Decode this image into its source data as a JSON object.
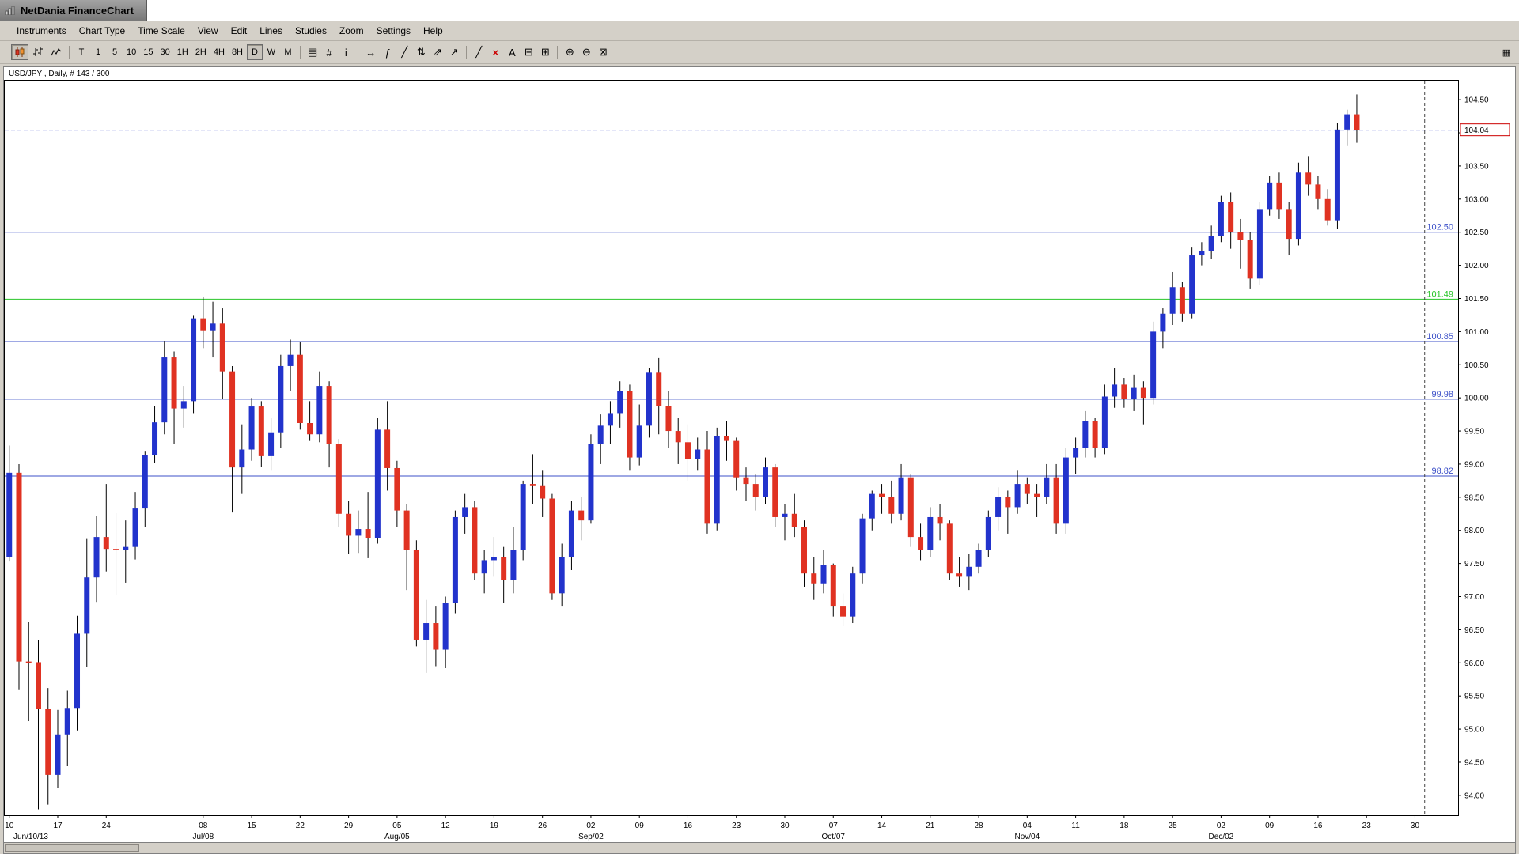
{
  "window": {
    "title": "NetDania FinanceChart"
  },
  "menu": {
    "items": [
      "Instruments",
      "Chart Type",
      "Time Scale",
      "View",
      "Edit",
      "Lines",
      "Studies",
      "Zoom",
      "Settings",
      "Help"
    ]
  },
  "toolbar": {
    "chart_types": [
      "candlestick",
      "ohlc-bars",
      "line"
    ],
    "selected_chart_type": "candlestick",
    "timeframes": [
      "T",
      "1",
      "5",
      "10",
      "15",
      "30",
      "1H",
      "2H",
      "4H",
      "8H",
      "D",
      "W",
      "M"
    ],
    "selected_timeframe": "D",
    "tools": [
      {
        "name": "pane-layout",
        "glyph": "▤"
      },
      {
        "name": "grid-toggle",
        "glyph": "#"
      },
      {
        "name": "info",
        "glyph": "i"
      },
      {
        "name": "separator"
      },
      {
        "name": "scroll-chart",
        "glyph": "↔"
      },
      {
        "name": "indicator",
        "glyph": "ƒ"
      },
      {
        "name": "trend-line",
        "glyph": "╱"
      },
      {
        "name": "vertical-line",
        "glyph": "⇅"
      },
      {
        "name": "ray-line",
        "glyph": "⇗"
      },
      {
        "name": "arrow-marker",
        "glyph": "↗"
      },
      {
        "name": "separator"
      },
      {
        "name": "free-draw",
        "glyph": "╱"
      },
      {
        "name": "delete-drawings",
        "glyph": "×",
        "color": "#cc0000"
      },
      {
        "name": "text-label",
        "glyph": "A"
      },
      {
        "name": "print",
        "glyph": "⊟"
      },
      {
        "name": "print-preview",
        "glyph": "⊞"
      },
      {
        "name": "separator"
      },
      {
        "name": "zoom-in",
        "glyph": "⊕"
      },
      {
        "name": "zoom-out",
        "glyph": "⊖"
      },
      {
        "name": "zoom-reset",
        "glyph": "⊠"
      }
    ],
    "right_icon_glyph": "▦"
  },
  "chart_data": {
    "type": "candlestick",
    "symbol": "USD/JPY",
    "timeframe": "Daily",
    "label": "USD/JPY , Daily, # 143 / 300",
    "bar_count": "143 / 300",
    "price_top": 104.8,
    "price_bottom": 93.7,
    "y_ticks": {
      "min": 94.0,
      "max": 104.5,
      "step": 0.5
    },
    "slots": 150,
    "cursor_slot": 146,
    "current_price": {
      "value": "104.04",
      "price": 104.04
    },
    "colors": {
      "up": "#2233cc",
      "down": "#e03222",
      "wick": "#000000",
      "cursor": "#444444"
    },
    "h_lines": [
      {
        "price": 104.04,
        "label": "104.04",
        "color": "#2a35c8",
        "style": "dashed",
        "axis_box": true
      },
      {
        "price": 102.5,
        "label": "102.50",
        "color": "#3c50c8",
        "style": "solid",
        "axis_box": false
      },
      {
        "price": 101.49,
        "label": "101.49",
        "color": "#27c427",
        "style": "solid",
        "axis_box": false
      },
      {
        "price": 100.85,
        "label": "100.85",
        "color": "#3c50c8",
        "style": "solid",
        "axis_box": false
      },
      {
        "price": 99.98,
        "label": "99.98",
        "color": "#3c50c8",
        "style": "solid",
        "axis_box": false
      },
      {
        "price": 98.82,
        "label": "98.82",
        "color": "#3c50c8",
        "style": "solid",
        "axis_box": false
      }
    ],
    "x_labels": [
      {
        "i": 0,
        "t": "10"
      },
      {
        "i": 5,
        "t": "17"
      },
      {
        "i": 10,
        "t": "24"
      },
      {
        "i": 20,
        "t": "08"
      },
      {
        "i": 25,
        "t": "15"
      },
      {
        "i": 30,
        "t": "22"
      },
      {
        "i": 35,
        "t": "29"
      },
      {
        "i": 40,
        "t": "05"
      },
      {
        "i": 45,
        "t": "12"
      },
      {
        "i": 50,
        "t": "19"
      },
      {
        "i": 55,
        "t": "26"
      },
      {
        "i": 60,
        "t": "02"
      },
      {
        "i": 65,
        "t": "09"
      },
      {
        "i": 70,
        "t": "16"
      },
      {
        "i": 75,
        "t": "23"
      },
      {
        "i": 80,
        "t": "30"
      },
      {
        "i": 85,
        "t": "07"
      },
      {
        "i": 90,
        "t": "14"
      },
      {
        "i": 95,
        "t": "21"
      },
      {
        "i": 100,
        "t": "28"
      },
      {
        "i": 105,
        "t": "04"
      },
      {
        "i": 110,
        "t": "11"
      },
      {
        "i": 115,
        "t": "18"
      },
      {
        "i": 120,
        "t": "25"
      },
      {
        "i": 125,
        "t": "02"
      },
      {
        "i": 130,
        "t": "09"
      },
      {
        "i": 135,
        "t": "16"
      },
      {
        "i": 140,
        "t": "23"
      },
      {
        "i": 145,
        "t": "30"
      }
    ],
    "month_labels": [
      {
        "i": 0,
        "t": "Jun/10/13",
        "align": "start"
      },
      {
        "i": 20,
        "t": "Jul/08",
        "align": "middle"
      },
      {
        "i": 40,
        "t": "Aug/05",
        "align": "middle"
      },
      {
        "i": 60,
        "t": "Sep/02",
        "align": "middle"
      },
      {
        "i": 85,
        "t": "Oct/07",
        "align": "middle"
      },
      {
        "i": 105,
        "t": "Nov/04",
        "align": "middle"
      },
      {
        "i": 125,
        "t": "Dec/02",
        "align": "middle"
      }
    ],
    "candles": [
      [
        97.6,
        99.28,
        97.53,
        98.87
      ],
      [
        98.87,
        99.0,
        95.6,
        96.02
      ],
      [
        96.02,
        96.62,
        95.12,
        96.01
      ],
      [
        96.01,
        96.35,
        93.79,
        95.3
      ],
      [
        95.3,
        95.62,
        93.86,
        94.31
      ],
      [
        94.31,
        95.29,
        94.11,
        94.92
      ],
      [
        94.92,
        95.58,
        94.44,
        95.32
      ],
      [
        95.32,
        96.71,
        94.98,
        96.44
      ],
      [
        96.44,
        97.87,
        95.94,
        97.29
      ],
      [
        97.29,
        98.22,
        96.92,
        97.9
      ],
      [
        97.9,
        98.7,
        97.38,
        97.72
      ],
      [
        97.72,
        98.26,
        97.03,
        97.71
      ],
      [
        97.71,
        98.15,
        97.21,
        97.75
      ],
      [
        97.75,
        98.58,
        97.56,
        98.33
      ],
      [
        98.33,
        99.2,
        98.05,
        99.14
      ],
      [
        99.14,
        99.88,
        99.02,
        99.63
      ],
      [
        99.63,
        100.86,
        99.45,
        100.61
      ],
      [
        100.61,
        100.7,
        99.3,
        99.84
      ],
      [
        99.84,
        100.18,
        99.55,
        99.95
      ],
      [
        99.95,
        101.25,
        99.77,
        101.2
      ],
      [
        101.2,
        101.53,
        100.75,
        101.02
      ],
      [
        101.02,
        101.45,
        100.61,
        101.12
      ],
      [
        101.12,
        101.35,
        99.98,
        100.4
      ],
      [
        100.4,
        100.48,
        98.27,
        98.95
      ],
      [
        98.95,
        99.6,
        98.55,
        99.22
      ],
      [
        99.22,
        100.0,
        99.05,
        99.87
      ],
      [
        99.87,
        99.95,
        98.96,
        99.12
      ],
      [
        99.12,
        99.7,
        98.9,
        99.48
      ],
      [
        99.48,
        100.65,
        99.25,
        100.48
      ],
      [
        100.48,
        100.88,
        100.1,
        100.65
      ],
      [
        100.65,
        100.85,
        99.52,
        99.62
      ],
      [
        99.62,
        99.95,
        99.35,
        99.45
      ],
      [
        99.45,
        100.4,
        99.33,
        100.18
      ],
      [
        100.18,
        100.25,
        98.95,
        99.3
      ],
      [
        99.3,
        99.38,
        98.05,
        98.25
      ],
      [
        98.25,
        98.45,
        97.65,
        97.92
      ],
      [
        97.92,
        98.3,
        97.66,
        98.02
      ],
      [
        98.02,
        98.58,
        97.58,
        97.88
      ],
      [
        97.88,
        99.7,
        97.8,
        99.52
      ],
      [
        99.52,
        99.95,
        98.6,
        98.94
      ],
      [
        98.94,
        99.05,
        98.05,
        98.3
      ],
      [
        98.3,
        98.4,
        97.1,
        97.7
      ],
      [
        97.7,
        97.85,
        96.25,
        96.35
      ],
      [
        96.35,
        96.95,
        95.85,
        96.6
      ],
      [
        96.6,
        96.85,
        95.95,
        96.2
      ],
      [
        96.2,
        97.0,
        95.92,
        96.9
      ],
      [
        96.9,
        98.3,
        96.75,
        98.2
      ],
      [
        98.2,
        98.55,
        97.95,
        98.35
      ],
      [
        98.35,
        98.45,
        97.25,
        97.35
      ],
      [
        97.35,
        97.7,
        97.05,
        97.55
      ],
      [
        97.55,
        97.9,
        97.3,
        97.6
      ],
      [
        97.6,
        97.75,
        96.9,
        97.25
      ],
      [
        97.25,
        98.05,
        97.05,
        97.7
      ],
      [
        97.7,
        98.75,
        97.55,
        98.7
      ],
      [
        98.7,
        99.15,
        98.4,
        98.68
      ],
      [
        98.68,
        98.9,
        98.2,
        98.48
      ],
      [
        98.48,
        98.55,
        96.95,
        97.05
      ],
      [
        97.05,
        97.8,
        96.85,
        97.6
      ],
      [
        97.6,
        98.45,
        97.4,
        98.3
      ],
      [
        98.3,
        98.5,
        97.85,
        98.15
      ],
      [
        98.15,
        99.45,
        98.1,
        99.3
      ],
      [
        99.3,
        99.75,
        99.0,
        99.58
      ],
      [
        99.58,
        99.95,
        99.3,
        99.77
      ],
      [
        99.77,
        100.25,
        99.55,
        100.1
      ],
      [
        100.1,
        100.2,
        98.9,
        99.1
      ],
      [
        99.1,
        99.9,
        98.98,
        99.58
      ],
      [
        99.58,
        100.45,
        99.4,
        100.38
      ],
      [
        100.38,
        100.6,
        99.45,
        99.88
      ],
      [
        99.88,
        100.1,
        99.25,
        99.5
      ],
      [
        99.5,
        99.7,
        99.0,
        99.33
      ],
      [
        99.33,
        99.6,
        98.75,
        99.08
      ],
      [
        99.08,
        99.4,
        98.9,
        99.22
      ],
      [
        99.22,
        99.5,
        97.95,
        98.1
      ],
      [
        98.1,
        99.55,
        98.0,
        99.42
      ],
      [
        99.42,
        99.65,
        99.05,
        99.35
      ],
      [
        99.35,
        99.4,
        98.6,
        98.8
      ],
      [
        98.8,
        98.95,
        98.45,
        98.7
      ],
      [
        98.7,
        98.85,
        98.3,
        98.5
      ],
      [
        98.5,
        99.1,
        98.4,
        98.95
      ],
      [
        98.95,
        99.0,
        98.05,
        98.2
      ],
      [
        98.2,
        98.4,
        97.85,
        98.25
      ],
      [
        98.25,
        98.55,
        97.9,
        98.05
      ],
      [
        98.05,
        98.15,
        97.15,
        97.35
      ],
      [
        97.35,
        97.6,
        96.95,
        97.2
      ],
      [
        97.2,
        97.7,
        97.05,
        97.48
      ],
      [
        97.48,
        97.5,
        96.7,
        96.85
      ],
      [
        96.85,
        97.05,
        96.55,
        96.7
      ],
      [
        96.7,
        97.45,
        96.6,
        97.35
      ],
      [
        97.35,
        98.25,
        97.2,
        98.18
      ],
      [
        98.18,
        98.6,
        98.0,
        98.55
      ],
      [
        98.55,
        98.7,
        98.25,
        98.5
      ],
      [
        98.5,
        98.75,
        98.1,
        98.25
      ],
      [
        98.25,
        99.0,
        98.15,
        98.8
      ],
      [
        98.8,
        98.85,
        97.75,
        97.9
      ],
      [
        97.9,
        98.1,
        97.55,
        97.7
      ],
      [
        97.7,
        98.35,
        97.6,
        98.2
      ],
      [
        98.2,
        98.4,
        97.85,
        98.1
      ],
      [
        98.1,
        98.15,
        97.25,
        97.35
      ],
      [
        97.35,
        97.6,
        97.15,
        97.3
      ],
      [
        97.3,
        97.65,
        97.1,
        97.45
      ],
      [
        97.45,
        97.8,
        97.35,
        97.7
      ],
      [
        97.7,
        98.3,
        97.6,
        98.2
      ],
      [
        98.2,
        98.65,
        98.0,
        98.5
      ],
      [
        98.5,
        98.6,
        97.95,
        98.35
      ],
      [
        98.35,
        98.9,
        98.25,
        98.7
      ],
      [
        98.7,
        98.8,
        98.4,
        98.55
      ],
      [
        98.55,
        98.7,
        98.2,
        98.5
      ],
      [
        98.5,
        99.0,
        98.4,
        98.8
      ],
      [
        98.8,
        99.0,
        97.95,
        98.1
      ],
      [
        98.1,
        99.25,
        97.95,
        99.1
      ],
      [
        99.1,
        99.4,
        98.85,
        99.25
      ],
      [
        99.25,
        99.8,
        99.1,
        99.65
      ],
      [
        99.65,
        99.7,
        99.1,
        99.25
      ],
      [
        99.25,
        100.2,
        99.15,
        100.02
      ],
      [
        100.02,
        100.45,
        99.85,
        100.2
      ],
      [
        100.2,
        100.3,
        99.85,
        99.98
      ],
      [
        99.98,
        100.35,
        99.8,
        100.15
      ],
      [
        100.15,
        100.25,
        99.6,
        100.0
      ],
      [
        100.0,
        101.15,
        99.9,
        101.0
      ],
      [
        101.0,
        101.35,
        100.75,
        101.27
      ],
      [
        101.27,
        101.9,
        101.1,
        101.67
      ],
      [
        101.67,
        101.75,
        101.15,
        101.27
      ],
      [
        101.27,
        102.28,
        101.2,
        102.15
      ],
      [
        102.15,
        102.35,
        102.0,
        102.22
      ],
      [
        102.22,
        102.6,
        102.1,
        102.44
      ],
      [
        102.44,
        103.05,
        102.35,
        102.95
      ],
      [
        102.95,
        103.1,
        102.25,
        102.5
      ],
      [
        102.5,
        102.7,
        101.95,
        102.38
      ],
      [
        102.38,
        102.5,
        101.65,
        101.8
      ],
      [
        101.8,
        102.95,
        101.7,
        102.85
      ],
      [
        102.85,
        103.35,
        102.75,
        103.25
      ],
      [
        103.25,
        103.4,
        102.7,
        102.85
      ],
      [
        102.85,
        102.95,
        102.15,
        102.4
      ],
      [
        102.4,
        103.55,
        102.3,
        103.4
      ],
      [
        103.4,
        103.65,
        103.05,
        103.22
      ],
      [
        103.22,
        103.35,
        102.85,
        103.0
      ],
      [
        103.0,
        103.15,
        102.6,
        102.68
      ],
      [
        102.68,
        104.15,
        102.55,
        104.05
      ],
      [
        104.05,
        104.35,
        103.8,
        104.28
      ],
      [
        104.28,
        104.58,
        103.85,
        104.04
      ]
    ]
  }
}
